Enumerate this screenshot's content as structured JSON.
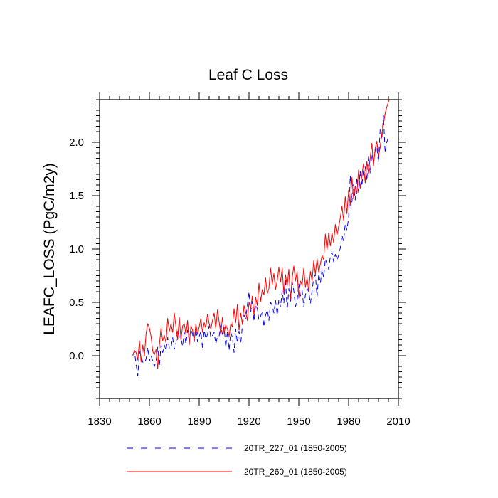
{
  "chart_data": {
    "type": "line",
    "title": "Leaf C Loss",
    "ylabel": "LEAFC_LOSS  (PgC/m2y)",
    "xlabel": "",
    "xlim": [
      1830,
      2010
    ],
    "ylim": [
      -0.4,
      2.4
    ],
    "x_ticks": [
      1830,
      1860,
      1890,
      1920,
      1950,
      1980,
      2010
    ],
    "x_tick_labels": [
      "1830",
      "1860",
      "1890",
      "1920",
      "1950",
      "1980",
      "2010"
    ],
    "y_ticks": [
      0.0,
      0.5,
      1.0,
      1.5,
      2.0
    ],
    "y_tick_labels": [
      "0.0",
      "0.5",
      "1.0",
      "1.5",
      "2.0"
    ],
    "grid": false,
    "legend_position": "bottom",
    "series": [
      {
        "name": "20TR_227_01 (1850-2005)",
        "color": "#0000ff",
        "dash": "dashed",
        "x": [
          1850,
          1851,
          1852,
          1853,
          1854,
          1855,
          1856,
          1857,
          1858,
          1859,
          1860,
          1861,
          1862,
          1863,
          1864,
          1865,
          1866,
          1867,
          1868,
          1869,
          1870,
          1871,
          1872,
          1873,
          1874,
          1875,
          1876,
          1877,
          1878,
          1879,
          1880,
          1881,
          1882,
          1883,
          1884,
          1885,
          1886,
          1887,
          1888,
          1889,
          1890,
          1891,
          1892,
          1893,
          1894,
          1895,
          1896,
          1897,
          1898,
          1899,
          1900,
          1901,
          1902,
          1903,
          1904,
          1905,
          1906,
          1907,
          1908,
          1909,
          1910,
          1911,
          1912,
          1913,
          1914,
          1915,
          1916,
          1917,
          1918,
          1919,
          1920,
          1921,
          1922,
          1923,
          1924,
          1925,
          1926,
          1927,
          1928,
          1929,
          1930,
          1931,
          1932,
          1933,
          1934,
          1935,
          1936,
          1937,
          1938,
          1939,
          1940,
          1941,
          1942,
          1943,
          1944,
          1945,
          1946,
          1947,
          1948,
          1949,
          1950,
          1951,
          1952,
          1953,
          1954,
          1955,
          1956,
          1957,
          1958,
          1959,
          1960,
          1961,
          1962,
          1963,
          1964,
          1965,
          1966,
          1967,
          1968,
          1969,
          1970,
          1971,
          1972,
          1973,
          1974,
          1975,
          1976,
          1977,
          1978,
          1979,
          1980,
          1981,
          1982,
          1983,
          1984,
          1985,
          1986,
          1987,
          1988,
          1989,
          1990,
          1991,
          1992,
          1993,
          1994,
          1995,
          1996,
          1997,
          1998,
          1999,
          2000,
          2001,
          2002,
          2003,
          2004,
          2005
        ],
        "y": [
          0.01,
          0.04,
          -0.08,
          -0.19,
          0.04,
          0.0,
          -0.06,
          -0.07,
          -0.03,
          0.08,
          -0.05,
          0.0,
          -0.05,
          -0.1,
          -0.05,
          0.08,
          -0.1,
          0.1,
          0.03,
          0.1,
          0.05,
          0.17,
          0.07,
          0.07,
          0.17,
          0.06,
          0.12,
          0.24,
          0.18,
          0.16,
          0.09,
          0.22,
          0.11,
          0.24,
          0.15,
          0.25,
          0.2,
          0.13,
          0.25,
          0.13,
          0.18,
          0.23,
          0.07,
          0.24,
          0.16,
          0.2,
          0.28,
          0.17,
          0.19,
          0.22,
          0.11,
          0.18,
          0.18,
          0.29,
          0.2,
          0.27,
          0.08,
          0.23,
          0.05,
          0.22,
          0.17,
          0.03,
          0.25,
          0.12,
          0.23,
          0.11,
          0.28,
          0.38,
          0.35,
          0.47,
          0.6,
          0.41,
          0.51,
          0.32,
          0.48,
          0.44,
          0.33,
          0.37,
          0.42,
          0.27,
          0.38,
          0.43,
          0.33,
          0.5,
          0.47,
          0.4,
          0.52,
          0.38,
          0.53,
          0.46,
          0.61,
          0.49,
          0.72,
          0.42,
          0.63,
          0.5,
          0.69,
          0.61,
          0.46,
          0.52,
          0.68,
          0.56,
          0.61,
          0.46,
          0.57,
          0.63,
          0.6,
          0.49,
          0.61,
          0.73,
          0.76,
          0.55,
          0.77,
          0.68,
          0.81,
          0.73,
          0.91,
          0.86,
          0.81,
          0.93,
          0.97,
          0.88,
          0.95,
          0.9,
          0.94,
          1.01,
          1.13,
          1.07,
          1.24,
          1.18,
          1.29,
          1.69,
          1.44,
          1.61,
          1.46,
          1.67,
          1.53,
          1.73,
          1.59,
          1.74,
          1.77,
          1.64,
          1.87,
          1.71,
          1.89,
          1.81,
          1.92,
          1.96,
          1.81,
          2.12,
          2.03,
          2.25,
          1.9,
          2.0,
          2.05,
          2.04
        ]
      },
      {
        "name": "20TR_260_01 (1850-2005)",
        "color": "#ff0000",
        "dash": "solid",
        "x": [
          1850,
          1851,
          1852,
          1853,
          1854,
          1855,
          1856,
          1857,
          1858,
          1859,
          1860,
          1861,
          1862,
          1863,
          1864,
          1865,
          1866,
          1867,
          1868,
          1869,
          1870,
          1871,
          1872,
          1873,
          1874,
          1875,
          1876,
          1877,
          1878,
          1879,
          1880,
          1881,
          1882,
          1883,
          1884,
          1885,
          1886,
          1887,
          1888,
          1889,
          1890,
          1891,
          1892,
          1893,
          1894,
          1895,
          1896,
          1897,
          1898,
          1899,
          1900,
          1901,
          1902,
          1903,
          1904,
          1905,
          1906,
          1907,
          1908,
          1909,
          1910,
          1911,
          1912,
          1913,
          1914,
          1915,
          1916,
          1917,
          1918,
          1919,
          1920,
          1921,
          1922,
          1923,
          1924,
          1925,
          1926,
          1927,
          1928,
          1929,
          1930,
          1931,
          1932,
          1933,
          1934,
          1935,
          1936,
          1937,
          1938,
          1939,
          1940,
          1941,
          1942,
          1943,
          1944,
          1945,
          1946,
          1947,
          1948,
          1949,
          1950,
          1951,
          1952,
          1953,
          1954,
          1955,
          1956,
          1957,
          1958,
          1959,
          1960,
          1961,
          1962,
          1963,
          1964,
          1965,
          1966,
          1967,
          1968,
          1969,
          1970,
          1971,
          1972,
          1973,
          1974,
          1975,
          1976,
          1977,
          1978,
          1979,
          1980,
          1981,
          1982,
          1983,
          1984,
          1985,
          1986,
          1987,
          1988,
          1989,
          1990,
          1991,
          1992,
          1993,
          1994,
          1995,
          1996,
          1997,
          1998,
          1999,
          2000,
          2001,
          2002,
          2003,
          2004,
          2005
        ],
        "y": [
          0.0,
          0.05,
          0.03,
          -0.04,
          0.14,
          -0.06,
          0.1,
          0.0,
          0.21,
          0.3,
          0.26,
          0.18,
          0.04,
          0.01,
          0.06,
          -0.12,
          0.1,
          0.26,
          0.14,
          0.19,
          0.12,
          0.35,
          0.23,
          0.3,
          0.22,
          0.4,
          0.27,
          0.15,
          0.36,
          0.15,
          0.28,
          0.3,
          0.2,
          0.33,
          0.1,
          0.28,
          0.24,
          0.14,
          0.3,
          0.2,
          0.27,
          0.35,
          0.22,
          0.31,
          0.26,
          0.39,
          0.3,
          0.25,
          0.33,
          0.4,
          0.25,
          0.43,
          0.32,
          0.2,
          0.36,
          0.21,
          0.29,
          0.25,
          0.18,
          0.3,
          0.27,
          0.44,
          0.31,
          0.48,
          0.24,
          0.4,
          0.3,
          0.47,
          0.41,
          0.33,
          0.5,
          0.44,
          0.56,
          0.38,
          0.55,
          0.47,
          0.68,
          0.51,
          0.62,
          0.57,
          0.73,
          0.58,
          0.63,
          0.82,
          0.67,
          0.77,
          0.62,
          0.7,
          0.83,
          0.69,
          0.82,
          0.58,
          0.76,
          0.65,
          0.81,
          0.53,
          0.73,
          0.84,
          0.7,
          0.79,
          0.54,
          0.7,
          0.66,
          0.82,
          0.64,
          0.73,
          0.6,
          0.79,
          0.7,
          0.89,
          0.76,
          0.91,
          0.78,
          0.86,
          0.94,
          0.9,
          1.14,
          0.99,
          1.15,
          1.03,
          1.15,
          1.06,
          1.23,
          1.13,
          1.21,
          1.29,
          1.4,
          1.27,
          1.49,
          1.33,
          1.55,
          1.41,
          1.67,
          1.47,
          1.59,
          1.52,
          1.74,
          1.57,
          1.69,
          1.8,
          1.62,
          1.82,
          1.71,
          1.85,
          1.99,
          1.78,
          1.94,
          2.01,
          1.87,
          1.95,
          2.08,
          2.17,
          2.27,
          2.33,
          2.38,
          2.42
        ]
      }
    ]
  }
}
